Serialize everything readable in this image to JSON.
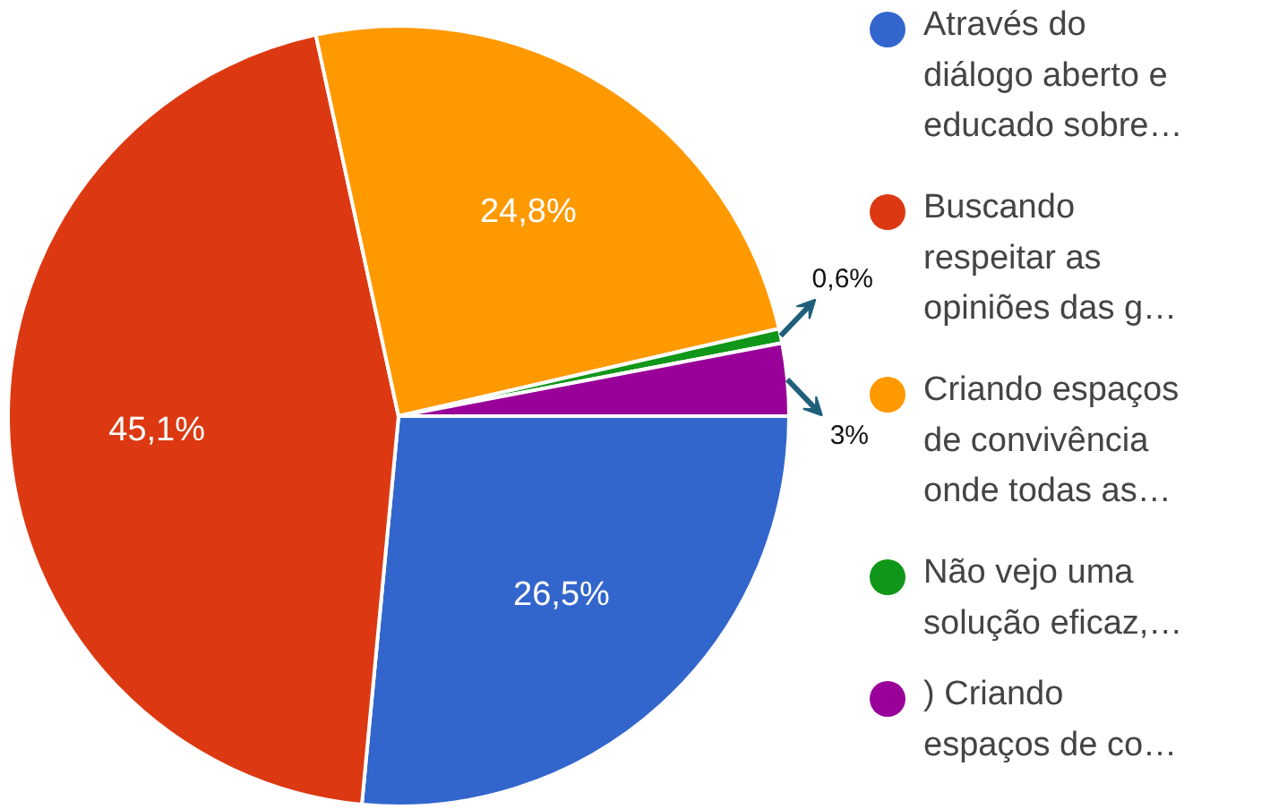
{
  "chart_data": {
    "type": "pie",
    "categories": [
      "Através do diálogo aberto e educado sobre…",
      "Buscando respeitar as opiniões das g…",
      "Criando espaços de convivência onde todas as…",
      "Não vejo uma solução eficaz,…",
      ") Criando espaços de co…"
    ],
    "values": [
      26.5,
      45.1,
      24.8,
      0.6,
      3
    ],
    "colors": [
      "#3366cc",
      "#dc3912",
      "#ff9900",
      "#109618",
      "#990099"
    ],
    "value_labels": [
      "26,5%",
      "45,1%",
      "24,8%",
      "0,6%",
      "3%"
    ],
    "legend": "right"
  }
}
